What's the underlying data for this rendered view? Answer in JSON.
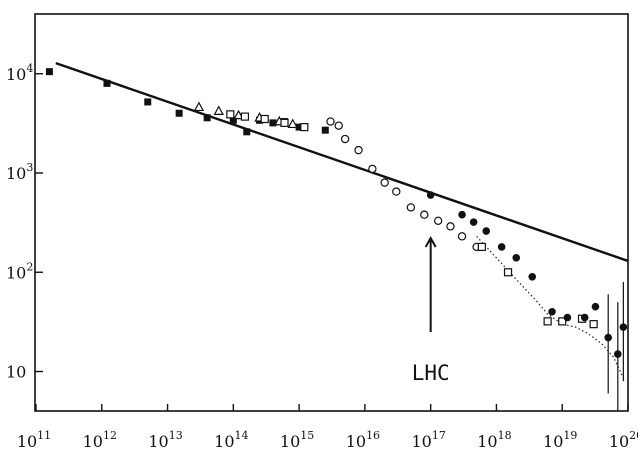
{
  "chart_data": {
    "type": "scatter",
    "title": "",
    "xlabel": "",
    "ylabel": "",
    "xscale": "log",
    "yscale": "log",
    "xlim": [
      100000000000.0,
      1e+20
    ],
    "ylim": [
      4,
      40000
    ],
    "grid": false,
    "legend": "none",
    "x_ticks": [
      {
        "base": "10",
        "exp": "11"
      },
      {
        "base": "10",
        "exp": "12"
      },
      {
        "base": "10",
        "exp": "13"
      },
      {
        "base": "10",
        "exp": "14"
      },
      {
        "base": "10",
        "exp": "15"
      },
      {
        "base": "10",
        "exp": "16"
      },
      {
        "base": "10",
        "exp": "17"
      },
      {
        "base": "10",
        "exp": "18"
      },
      {
        "base": "10",
        "exp": "19"
      },
      {
        "base": "10",
        "exp": "20"
      }
    ],
    "y_ticks": [
      {
        "base": "10",
        "exp": "4",
        "value": 10000
      },
      {
        "base": "10",
        "exp": "3",
        "value": 1000
      },
      {
        "base": "10",
        "exp": "2",
        "value": 100
      },
      {
        "base": "10",
        "exp": "",
        "value": 10
      }
    ],
    "fit_line": {
      "x": [
        200000000000.0,
        1e+20
      ],
      "y": [
        12800,
        130
      ]
    },
    "dotted_curve": {
      "x": [
        5e+17,
        1e+18,
        2e+18,
        4e+18,
        6e+18,
        1e+19,
        1.6e+19,
        2.5e+19,
        4e+19,
        6e+19,
        9e+19
      ],
      "y": [
        230,
        140,
        85,
        52,
        38,
        30,
        28,
        24,
        19,
        14,
        8
      ]
    },
    "series": [
      {
        "marker": "filled-square",
        "x": [
          160000000000.0,
          1200000000000.0,
          5000000000000.0,
          15000000000000.0,
          40000000000000.0,
          100000000000000.0,
          160000000000000.0,
          250000000000000.0,
          400000000000000.0,
          600000000000000.0,
          1000000000000000.0,
          2500000000000000.0
        ],
        "y": [
          10500,
          8000,
          5200,
          4000,
          3600,
          3400,
          2600,
          3400,
          3200,
          3300,
          2900,
          2700
        ]
      },
      {
        "marker": "open-circle",
        "x": [
          3000000000000000.0,
          4000000000000000.0,
          5000000000000000.0,
          8000000000000000.0,
          1.3e+16,
          2e+16,
          3e+16,
          5e+16,
          8e+16,
          1.3e+17,
          2e+17,
          3e+17,
          5e+17
        ],
        "y": [
          3300,
          3000,
          2200,
          1700,
          1100,
          800,
          650,
          450,
          380,
          330,
          290,
          230,
          180
        ]
      },
      {
        "marker": "open-triangle",
        "x": [
          30000000000000.0,
          60000000000000.0,
          120000000000000.0,
          250000000000000.0,
          500000000000000.0,
          800000000000000.0
        ],
        "y": [
          4600,
          4200,
          3800,
          3600,
          3300,
          3100
        ]
      },
      {
        "marker": "open-square",
        "x": [
          90000000000000.0,
          150000000000000.0,
          300000000000000.0,
          600000000000000.0,
          1200000000000000.0,
          6e+17,
          1.5e+18,
          6e+18,
          1e+19,
          2e+19,
          3e+19
        ],
        "y": [
          3900,
          3700,
          3500,
          3200,
          2900,
          180,
          100,
          32,
          32,
          34,
          30
        ]
      },
      {
        "marker": "filled-circle",
        "x": [
          1e+17,
          3e+17,
          4.5e+17,
          7e+17,
          1.2e+18,
          2e+18,
          3.5e+18,
          7e+18,
          1.2e+19,
          2.2e+19,
          3.2e+19,
          5e+19,
          7e+19,
          8.5e+19
        ],
        "y": [
          600,
          380,
          320,
          260,
          180,
          140,
          90,
          40,
          35,
          35,
          45,
          22,
          15,
          28
        ]
      }
    ],
    "error_bars": [
      {
        "x": 5e+19,
        "y": 22,
        "y_low": 6,
        "y_high": 60
      },
      {
        "x": 7e+19,
        "y": 15,
        "y_low": 4,
        "y_high": 50
      },
      {
        "x": 8.5e+19,
        "y": 28,
        "y_low": 8,
        "y_high": 80
      }
    ],
    "annotation": {
      "text": "LHC",
      "x": 1e+17
    }
  }
}
